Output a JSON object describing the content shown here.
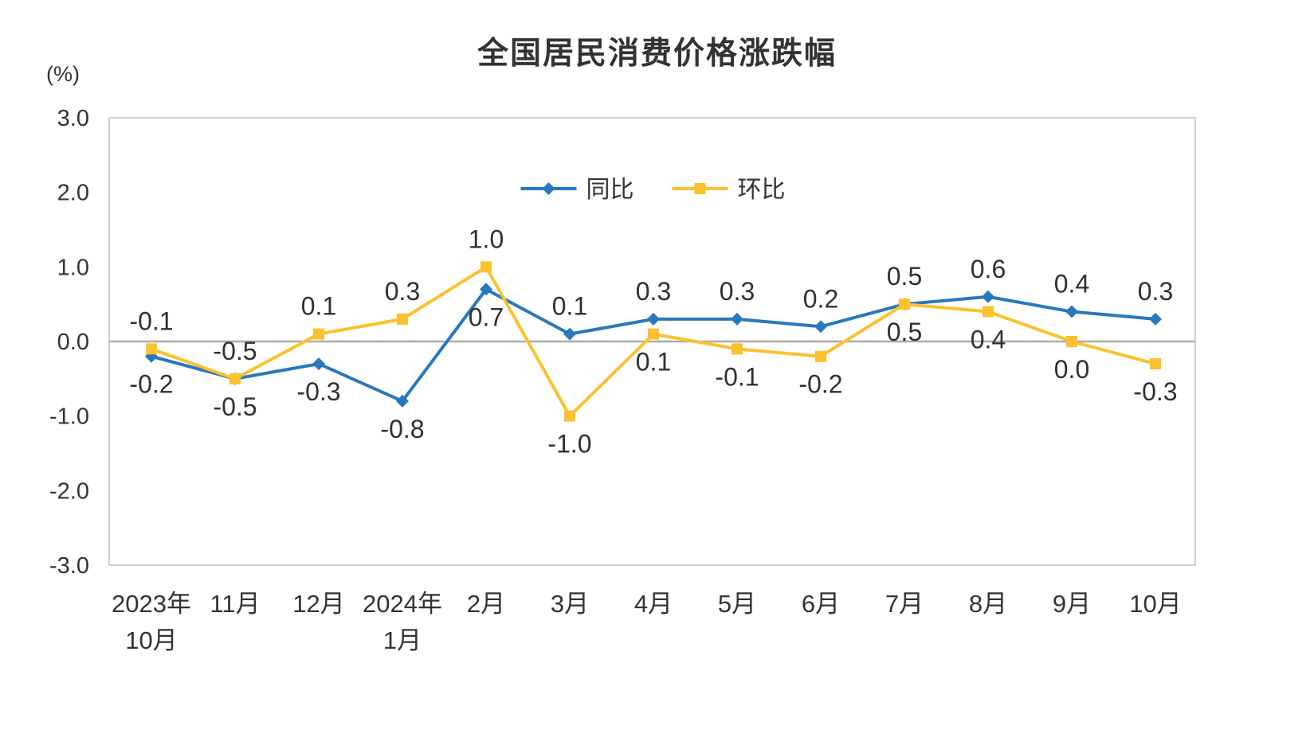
{
  "chart": {
    "title": "全国居民消费价格涨跌幅",
    "unit": "(%)"
  },
  "chart_data": {
    "type": "line",
    "title": "全国居民消费价格涨跌幅",
    "unit": "(%)",
    "categories": [
      [
        "2023年",
        "10月"
      ],
      [
        "11月"
      ],
      [
        "12月"
      ],
      [
        "2024年",
        "1月"
      ],
      [
        "2月"
      ],
      [
        "3月"
      ],
      [
        "4月"
      ],
      [
        "5月"
      ],
      [
        "6月"
      ],
      [
        "7月"
      ],
      [
        "8月"
      ],
      [
        "9月"
      ],
      [
        "10月"
      ]
    ],
    "yticks": [
      "3.0",
      "2.0",
      "1.0",
      "0.0",
      "-1.0",
      "-2.0",
      "-3.0"
    ],
    "ylim": [
      -3.0,
      3.0
    ],
    "grid": false,
    "legend_position": "top-center-inside",
    "series": [
      {
        "name": "同比",
        "color": "#2878BD",
        "marker": "diamond",
        "values": [
          -0.2,
          -0.5,
          -0.3,
          -0.8,
          0.7,
          0.1,
          0.3,
          0.3,
          0.2,
          0.5,
          0.6,
          0.4,
          0.3
        ],
        "label_side": [
          "below",
          "below",
          "below",
          "below",
          "below",
          "above",
          "above",
          "above",
          "above",
          "above",
          "above",
          "above",
          "above"
        ]
      },
      {
        "name": "环比",
        "color": "#FCC12E",
        "marker": "square",
        "values": [
          -0.1,
          -0.5,
          0.1,
          0.3,
          1.0,
          -1.0,
          0.1,
          -0.1,
          -0.2,
          0.5,
          0.4,
          0.0,
          -0.3
        ],
        "label_side": [
          "above",
          "above",
          "above",
          "above",
          "above",
          "below",
          "below",
          "below",
          "below",
          "below",
          "below",
          "below",
          "below"
        ]
      }
    ],
    "axis_color": "#BFBFBF",
    "zero_line_color": "#ABABAB",
    "text_color": "#333333",
    "label_color": "#303030"
  }
}
